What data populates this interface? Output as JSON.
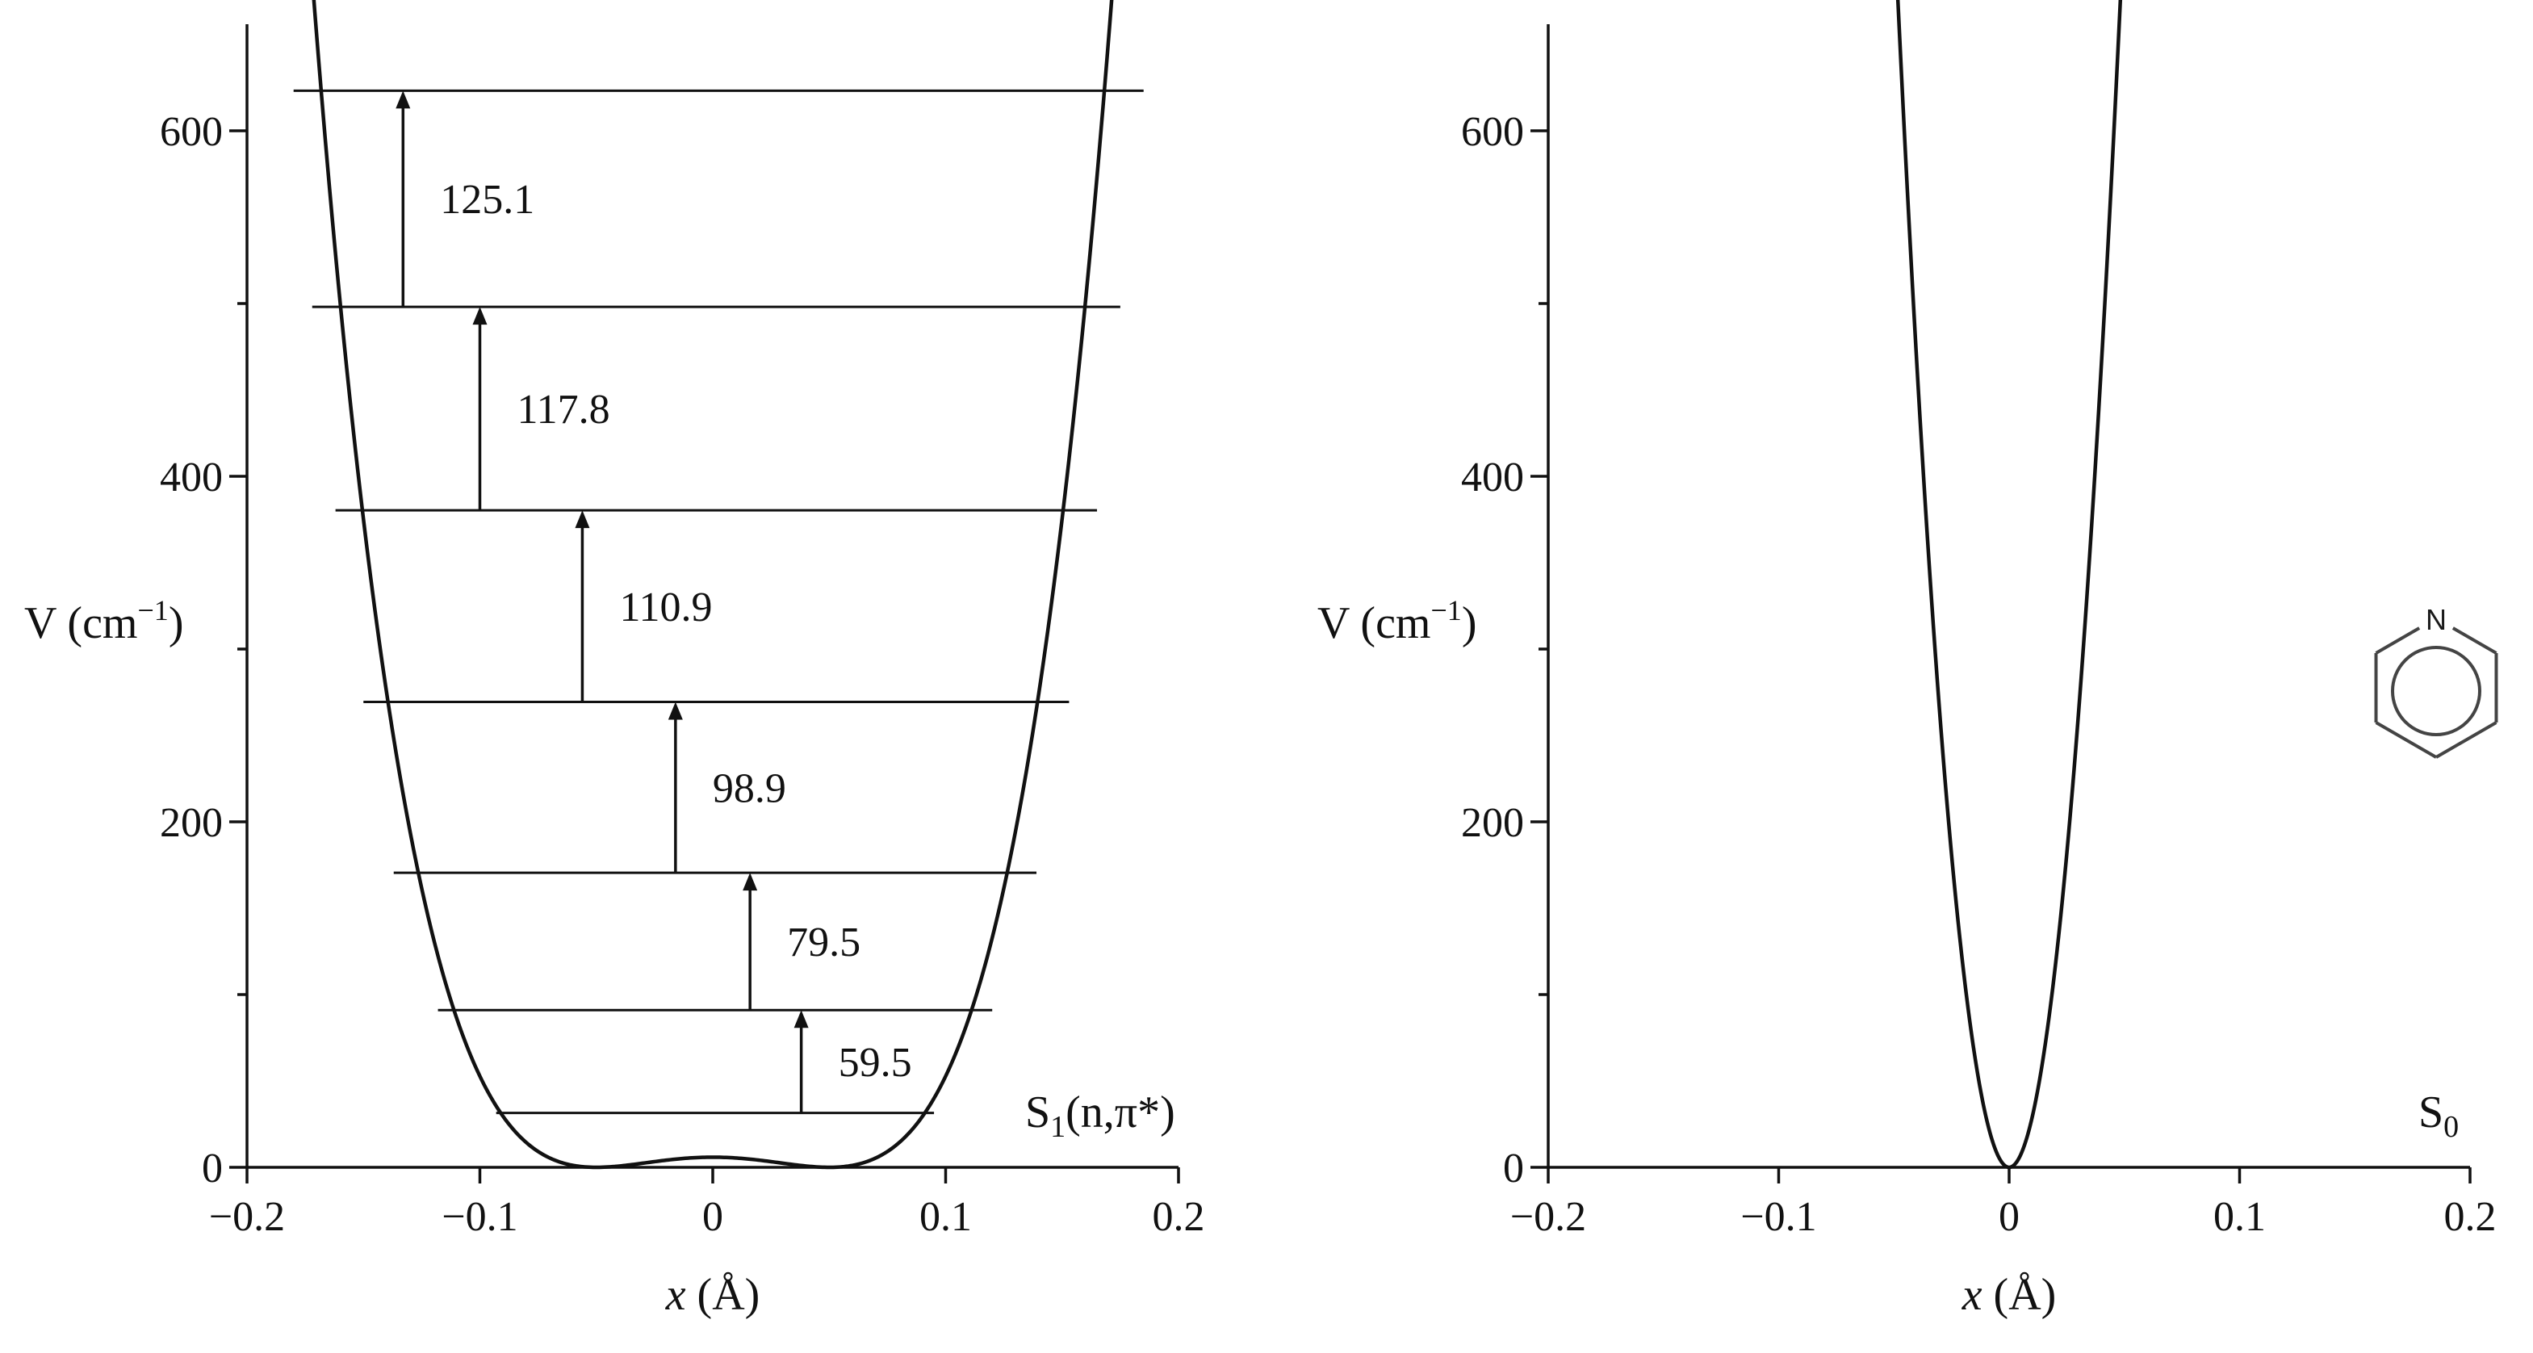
{
  "chart_data": [
    {
      "type": "line",
      "panel": "left",
      "xlabel": "x (Å)",
      "xlabel_var": "x",
      "xlabel_unit": "(Å)",
      "ylabel": "V (cm⁻¹)",
      "ylabel_main": "V (cm",
      "ylabel_sup": "−1",
      "ylabel_close": ")",
      "xlim": [
        -0.2,
        0.2
      ],
      "ylim": [
        0,
        650
      ],
      "x_ticks": [
        -0.2,
        -0.1,
        0,
        0.1,
        0.2
      ],
      "x_tick_labels": [
        "−0.2",
        "−0.1",
        "0",
        "0.1",
        "0.2"
      ],
      "y_major_ticks": [
        0,
        200,
        400,
        600
      ],
      "y_tick_labels": [
        "0",
        "200",
        "400",
        "600"
      ],
      "y_minor_ticks": [
        100,
        300,
        500
      ],
      "state_label_main": "S",
      "state_label_sub": "1",
      "state_label_rest": "(n,π*)",
      "potential": {
        "form": "V = a·x⁴ − b·x² + c",
        "a": 938000.0,
        "b": 4690.0,
        "c": 5.86,
        "x_range": [
          -0.181,
          0.187
        ]
      },
      "energy_levels": [
        {
          "energy": 31.5,
          "x_left": -0.093,
          "x_right": 0.095
        },
        {
          "energy": 91.0,
          "x_left": -0.118,
          "x_right": 0.12
        },
        {
          "energy": 170.5,
          "x_left": -0.137,
          "x_right": 0.139
        },
        {
          "energy": 269.4,
          "x_left": -0.15,
          "x_right": 0.153
        },
        {
          "energy": 380.3,
          "x_left": -0.162,
          "x_right": 0.165
        },
        {
          "energy": 498.1,
          "x_left": -0.172,
          "x_right": 0.175
        },
        {
          "energy": 623.2,
          "x_left": -0.18,
          "x_right": 0.185
        }
      ],
      "transitions": [
        {
          "x": 0.038,
          "from": 31.5,
          "to": 91.0,
          "label": "59.5"
        },
        {
          "x": 0.016,
          "from": 91.0,
          "to": 170.5,
          "label": "79.5"
        },
        {
          "x": -0.016,
          "from": 170.5,
          "to": 269.4,
          "label": "98.9"
        },
        {
          "x": -0.056,
          "from": 269.4,
          "to": 380.3,
          "label": "110.9"
        },
        {
          "x": -0.1,
          "from": 380.3,
          "to": 498.1,
          "label": "117.8"
        },
        {
          "x": -0.133,
          "from": 498.1,
          "to": 623.2,
          "label": "125.1"
        }
      ]
    },
    {
      "type": "line",
      "panel": "right",
      "xlabel": "x (Å)",
      "xlabel_var": "x",
      "xlabel_unit": "(Å)",
      "ylabel": "V (cm⁻¹)",
      "ylabel_main": "V (cm",
      "ylabel_sup": "−1",
      "ylabel_close": ")",
      "xlim": [
        -0.2,
        0.2
      ],
      "ylim": [
        0,
        650
      ],
      "x_ticks": [
        -0.2,
        -0.1,
        0,
        0.1,
        0.2
      ],
      "x_tick_labels": [
        "−0.2",
        "−0.1",
        "0",
        "0.1",
        "0.2"
      ],
      "y_major_ticks": [
        0,
        200,
        400,
        600
      ],
      "y_tick_labels": [
        "0",
        "200",
        "400",
        "600"
      ],
      "y_minor_ticks": [
        100,
        300,
        500
      ],
      "state_label_main": "S",
      "state_label_sub": "0",
      "potential": {
        "form": "V = a·x²",
        "a": 290000.0,
        "x_range": [
          -0.0505,
          0.0505
        ]
      },
      "inset": {
        "name": "pyridine-structure",
        "atom_label": "N"
      }
    }
  ]
}
